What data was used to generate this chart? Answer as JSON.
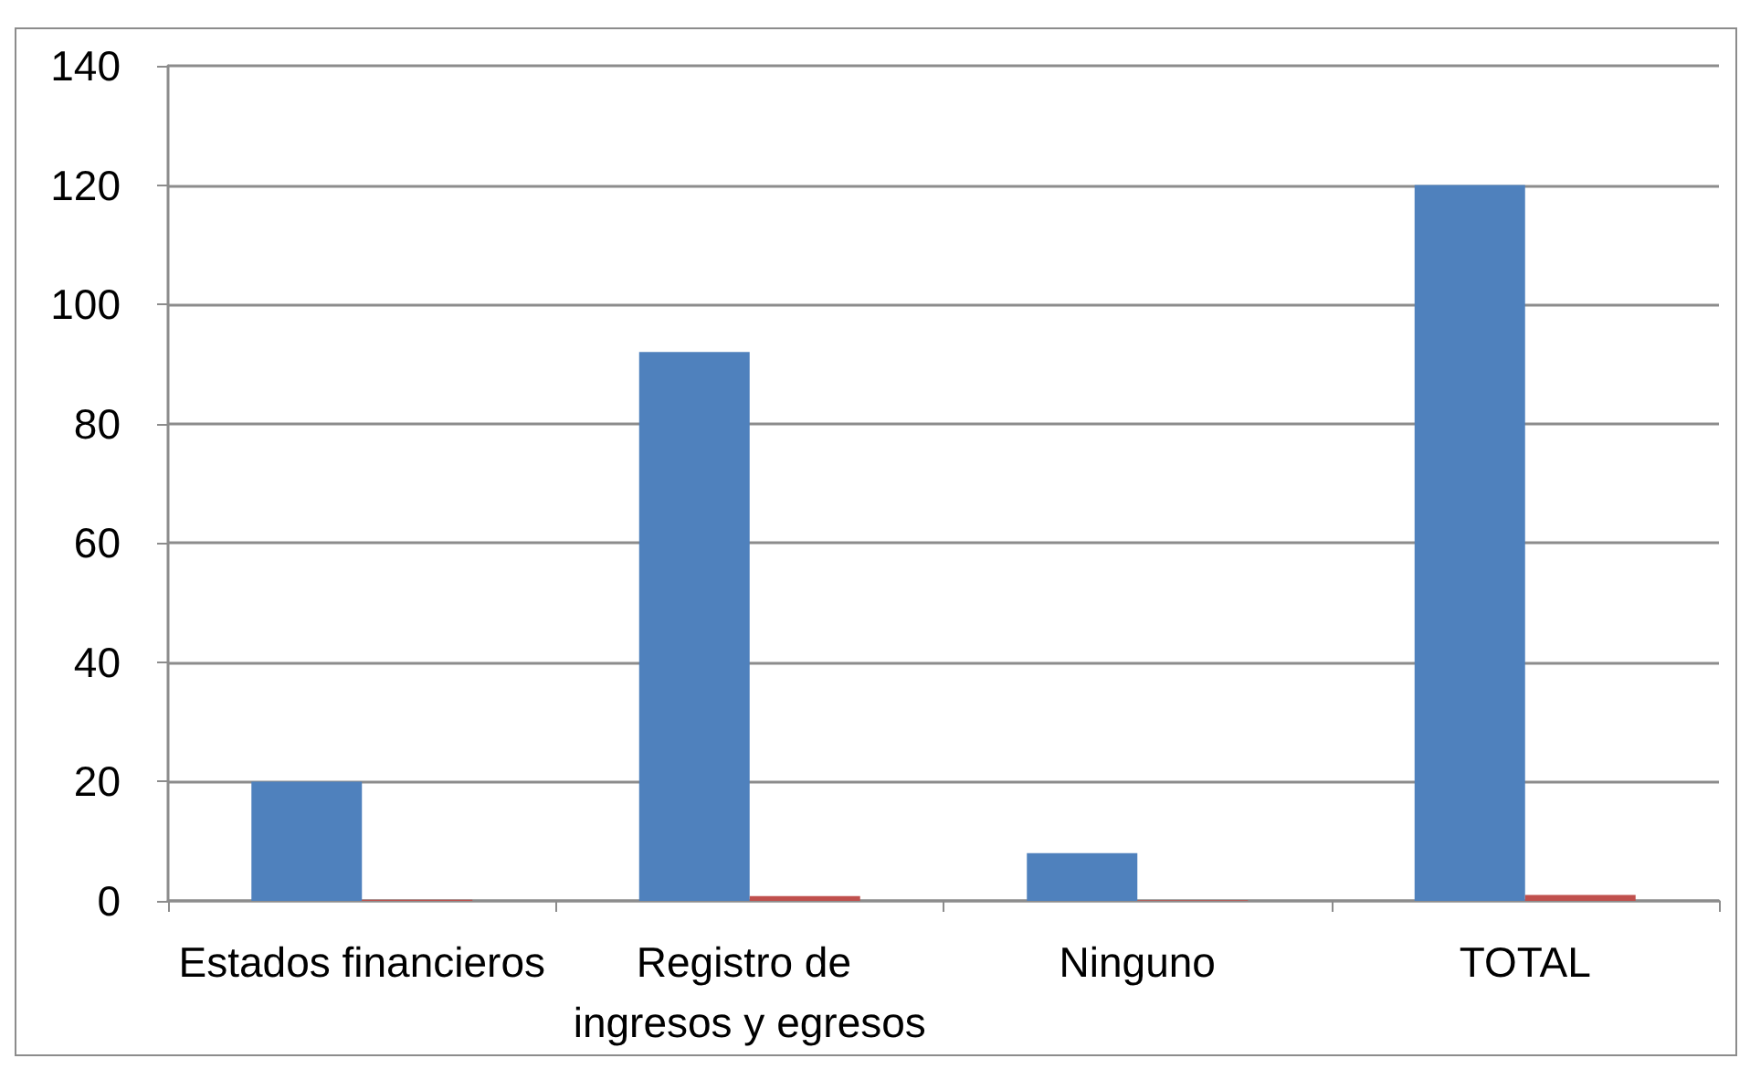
{
  "chart_data": {
    "type": "bar",
    "categories": [
      "Estados financieros",
      "Registro de ingresos y egresos",
      "Ninguno",
      "TOTAL"
    ],
    "series": [
      {
        "color": "#4f81bd",
        "values": [
          20,
          92,
          8,
          120
        ]
      },
      {
        "color": "#c0504d",
        "values": [
          0.2,
          0.8,
          0.1,
          1
        ]
      }
    ],
    "ylim": [
      0,
      140
    ],
    "yticks": [
      0,
      20,
      40,
      60,
      80,
      100,
      120,
      140
    ],
    "grid": "y"
  }
}
